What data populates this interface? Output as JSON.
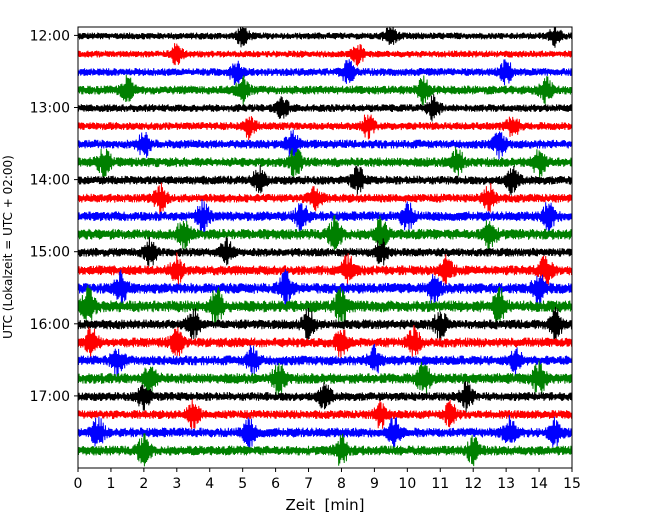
{
  "chart_data": {
    "type": "line",
    "subtype": "helicorder",
    "title": "",
    "xlabel": "Zeit  [min]",
    "ylabel": "UTC (Lokalzeit = UTC + 02:00)",
    "xlim": [
      0,
      15
    ],
    "x_ticks": [
      "0",
      "1",
      "2",
      "3",
      "4",
      "5",
      "6",
      "7",
      "8",
      "9",
      "10",
      "11",
      "12",
      "13",
      "14",
      "15"
    ],
    "y_ticks": [
      "12:00",
      "13:00",
      "14:00",
      "15:00",
      "16:00",
      "17:00"
    ],
    "ylim": [
      "11:53",
      "18:00"
    ],
    "trace_interval_min": 15,
    "colors": [
      "#000000",
      "#ff0000",
      "#0000ff",
      "#008000"
    ],
    "traces": [
      {
        "start": "11:53",
        "color": "#000000",
        "amplitude": 0.35,
        "bursts": [
          5.0,
          9.5,
          14.5
        ]
      },
      {
        "start": "12:08",
        "color": "#ff0000",
        "amplitude": 0.35,
        "bursts": [
          3.0,
          8.5
        ]
      },
      {
        "start": "12:23",
        "color": "#0000ff",
        "amplitude": 0.4,
        "bursts": [
          4.8,
          8.2,
          13.0
        ]
      },
      {
        "start": "12:38",
        "color": "#008000",
        "amplitude": 0.45,
        "bursts": [
          1.5,
          5.0,
          10.5,
          14.2
        ]
      },
      {
        "start": "12:53",
        "color": "#000000",
        "amplitude": 0.4,
        "bursts": [
          6.2,
          10.8
        ]
      },
      {
        "start": "13:08",
        "color": "#ff0000",
        "amplitude": 0.4,
        "bursts": [
          5.2,
          8.8,
          13.2
        ]
      },
      {
        "start": "13:23",
        "color": "#0000ff",
        "amplitude": 0.45,
        "bursts": [
          2.0,
          6.5,
          12.8
        ]
      },
      {
        "start": "13:38",
        "color": "#008000",
        "amplitude": 0.5,
        "bursts": [
          0.8,
          6.6,
          11.5,
          14.0
        ]
      },
      {
        "start": "13:53",
        "color": "#000000",
        "amplitude": 0.45,
        "bursts": [
          5.5,
          8.5,
          13.2
        ]
      },
      {
        "start": "14:08",
        "color": "#ff0000",
        "amplitude": 0.45,
        "bursts": [
          2.5,
          7.2,
          12.5
        ]
      },
      {
        "start": "14:23",
        "color": "#0000ff",
        "amplitude": 0.5,
        "bursts": [
          3.8,
          6.8,
          10.0,
          14.3
        ]
      },
      {
        "start": "14:38",
        "color": "#008000",
        "amplitude": 0.55,
        "bursts": [
          3.2,
          7.8,
          9.2,
          12.5
        ]
      },
      {
        "start": "14:53",
        "color": "#000000",
        "amplitude": 0.45,
        "bursts": [
          2.2,
          4.5,
          9.2
        ]
      },
      {
        "start": "15:08",
        "color": "#ff0000",
        "amplitude": 0.5,
        "bursts": [
          3.0,
          8.2,
          11.2,
          14.2
        ]
      },
      {
        "start": "15:23",
        "color": "#0000ff",
        "amplitude": 0.55,
        "bursts": [
          1.3,
          6.3,
          10.8,
          14.0
        ]
      },
      {
        "start": "15:38",
        "color": "#008000",
        "amplitude": 0.6,
        "bursts": [
          0.3,
          4.2,
          8.0,
          12.8
        ]
      },
      {
        "start": "15:53",
        "color": "#000000",
        "amplitude": 0.5,
        "bursts": [
          3.5,
          7.0,
          11.0,
          14.5
        ]
      },
      {
        "start": "16:08",
        "color": "#ff0000",
        "amplitude": 0.5,
        "bursts": [
          0.4,
          3.0,
          8.0,
          10.2
        ]
      },
      {
        "start": "16:23",
        "color": "#0000ff",
        "amplitude": 0.5,
        "bursts": [
          1.2,
          5.3,
          9.0,
          13.3
        ]
      },
      {
        "start": "16:38",
        "color": "#008000",
        "amplitude": 0.55,
        "bursts": [
          2.2,
          6.1,
          10.5,
          14.0
        ]
      },
      {
        "start": "16:53",
        "color": "#000000",
        "amplitude": 0.45,
        "bursts": [
          2.0,
          7.5,
          11.8
        ]
      },
      {
        "start": "17:08",
        "color": "#ff0000",
        "amplitude": 0.45,
        "bursts": [
          3.5,
          9.2,
          11.3
        ]
      },
      {
        "start": "17:23",
        "color": "#0000ff",
        "amplitude": 0.5,
        "bursts": [
          0.6,
          5.2,
          9.6,
          13.1,
          14.5
        ]
      },
      {
        "start": "17:38",
        "color": "#008000",
        "amplitude": 0.5,
        "bursts": [
          2.0,
          8.0,
          12.0
        ]
      }
    ]
  }
}
